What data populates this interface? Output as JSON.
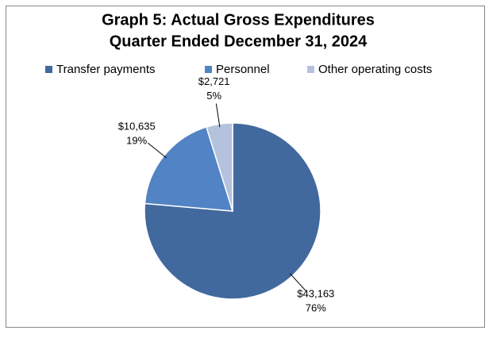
{
  "chart_data": {
    "type": "pie",
    "title": "Graph 5: Actual Gross Expenditures",
    "subtitle": "Quarter Ended December 31, 2024",
    "categories": [
      "Transfer payments",
      "Personnel",
      "Other operating costs"
    ],
    "values": [
      43163,
      10635,
      2721
    ],
    "value_labels": [
      "$43,163",
      "$10,635",
      "$2,721"
    ],
    "percent_labels": [
      "76%",
      "19%",
      "5%"
    ],
    "colors": [
      "#41699e",
      "#5283c4",
      "#b4c2de"
    ],
    "legend": "top"
  }
}
